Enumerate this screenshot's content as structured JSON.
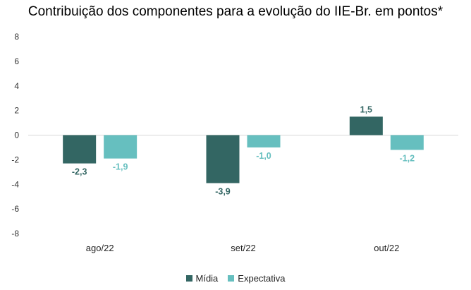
{
  "chart_data": {
    "type": "bar",
    "title": "Contribuição dos componentes para a evolução do IIE-Br. em pontos*",
    "categories": [
      "ago/22",
      "set/22",
      "out/22"
    ],
    "series": [
      {
        "name": "Mídia",
        "color": "#336663",
        "values": [
          -2.3,
          -3.9,
          1.5
        ],
        "labels": [
          "-2,3",
          "-3,9",
          "1,5"
        ]
      },
      {
        "name": "Expectativa",
        "color": "#66BFBF",
        "values": [
          -1.9,
          -1.0,
          -1.2
        ],
        "labels": [
          "-1,9",
          "-1,0",
          "-1,2"
        ]
      }
    ],
    "ylim": [
      -8,
      8
    ],
    "yticks": [
      8,
      6,
      4,
      2,
      0,
      -2,
      -4,
      -6,
      -8
    ],
    "grid": false,
    "legend_position": "bottom"
  }
}
